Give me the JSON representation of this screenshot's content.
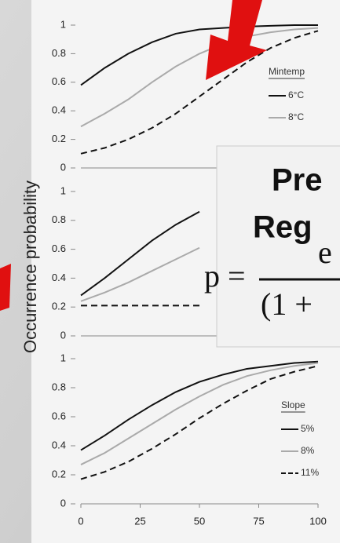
{
  "chart_data": [
    {
      "type": "line",
      "ylabel": "Occurrence probability",
      "x": [
        0,
        10,
        20,
        30,
        40,
        50,
        60,
        70,
        80,
        90,
        100
      ],
      "xlim": [
        0,
        100
      ],
      "ylim": [
        0,
        1
      ],
      "yticks": [
        0,
        0.2,
        0.4,
        0.6,
        0.8,
        1
      ],
      "legend_title": "Mintemp",
      "series": [
        {
          "name": "6°C",
          "color": "#111111",
          "line_style": "solid",
          "values": [
            0.58,
            0.7,
            0.8,
            0.88,
            0.94,
            0.97,
            0.98,
            0.99,
            0.995,
            1,
            1
          ]
        },
        {
          "name": "8°C",
          "color": "#aaaaaa",
          "line_style": "solid",
          "values": [
            0.29,
            0.38,
            0.48,
            0.6,
            0.71,
            0.8,
            0.87,
            0.92,
            0.95,
            0.97,
            0.98
          ]
        },
        {
          "color": "#111111",
          "line_style": "dashed",
          "values": [
            0.1,
            0.14,
            0.2,
            0.28,
            0.38,
            0.5,
            0.62,
            0.74,
            0.84,
            0.91,
            0.96
          ]
        }
      ]
    },
    {
      "type": "line",
      "x": [
        0,
        10,
        20,
        30,
        40,
        50,
        60,
        70,
        80,
        90,
        100
      ],
      "xlim": [
        0,
        100
      ],
      "ylim": [
        0,
        1
      ],
      "yticks": [
        0,
        0.2,
        0.4,
        0.6,
        0.8,
        1
      ],
      "series": [
        {
          "color": "#111111",
          "line_style": "solid",
          "values": [
            0.28,
            0.4,
            0.53,
            0.66,
            0.77,
            0.86,
            null,
            null,
            null,
            null,
            null
          ]
        },
        {
          "color": "#aaaaaa",
          "line_style": "solid",
          "values": [
            0.24,
            0.3,
            0.37,
            0.45,
            0.53,
            0.61,
            null,
            null,
            null,
            null,
            null
          ]
        },
        {
          "color": "#111111",
          "line_style": "dashed",
          "values": [
            0.21,
            0.21,
            0.21,
            0.21,
            0.21,
            0.21,
            null,
            null,
            null,
            null,
            null
          ]
        }
      ]
    },
    {
      "type": "line",
      "x": [
        0,
        10,
        20,
        30,
        40,
        50,
        60,
        70,
        80,
        90,
        100
      ],
      "xlim": [
        0,
        100
      ],
      "xticks": [
        0,
        25,
        50,
        75,
        100
      ],
      "ylim": [
        0,
        1
      ],
      "yticks": [
        0,
        0.2,
        0.4,
        0.6,
        0.8,
        1
      ],
      "legend_title": "Slope",
      "series": [
        {
          "name": "5%",
          "color": "#111111",
          "line_style": "solid",
          "values": [
            0.37,
            0.47,
            0.58,
            0.68,
            0.77,
            0.84,
            0.89,
            0.93,
            0.95,
            0.97,
            0.98
          ]
        },
        {
          "name": "8%",
          "color": "#aaaaaa",
          "line_style": "solid",
          "values": [
            0.27,
            0.35,
            0.45,
            0.55,
            0.65,
            0.74,
            0.82,
            0.88,
            0.92,
            0.95,
            0.97
          ]
        },
        {
          "name": "11%",
          "color": "#111111",
          "line_style": "dashed",
          "values": [
            0.17,
            0.22,
            0.29,
            0.38,
            0.48,
            0.59,
            0.69,
            0.78,
            0.86,
            0.91,
            0.95
          ]
        }
      ]
    }
  ],
  "overlay": {
    "lines": [
      "Pre",
      "Reg"
    ],
    "formula_lhs": "p =",
    "numerator": "e",
    "denominator": "(1 +"
  }
}
